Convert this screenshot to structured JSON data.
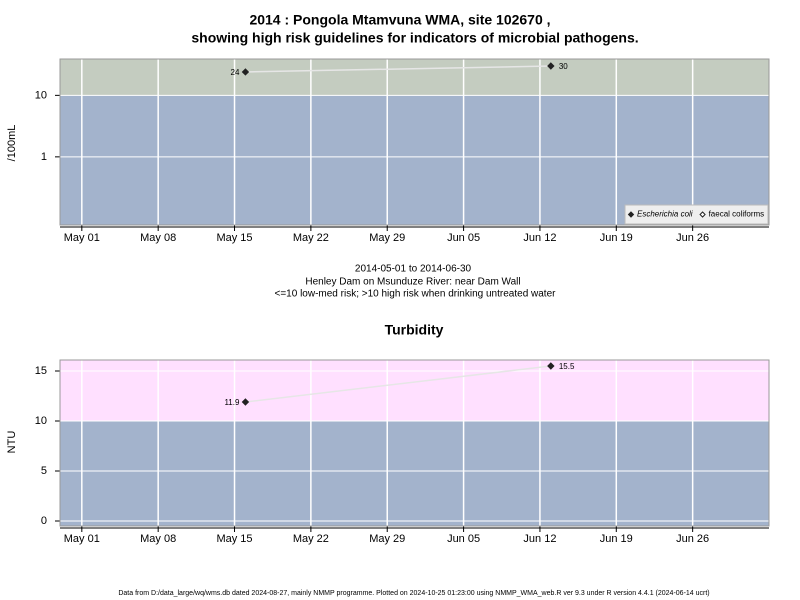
{
  "chart_data": [
    {
      "type": "line",
      "title": "2014 : Pongola Mtamvuna WMA, site 102670 ,",
      "subtitle": "showing high risk guidelines for indicators of microbial pathogens.",
      "ylabel": "/100mL",
      "log_y": true,
      "ylim": [
        0.078,
        39
      ],
      "yticks": [
        1,
        10
      ],
      "xlim": [
        "04-29",
        "07-03"
      ],
      "xticks": [
        {
          "value": "05-01",
          "label": "May 01"
        },
        {
          "value": "05-08",
          "label": "May 08"
        },
        {
          "value": "05-15",
          "label": "May 15"
        },
        {
          "value": "05-22",
          "label": "May 22"
        },
        {
          "value": "05-29",
          "label": "May 29"
        },
        {
          "value": "06-05",
          "label": "Jun 05"
        },
        {
          "value": "06-12",
          "label": "Jun 12"
        },
        {
          "value": "06-19",
          "label": "Jun 19"
        },
        {
          "value": "06-26",
          "label": "Jun 26"
        }
      ],
      "x": [
        "05-16",
        "06-13"
      ],
      "series": [
        {
          "name": "Escherichia coli",
          "color": "#222222",
          "marker": "filled",
          "values": [
            24,
            30
          ]
        },
        {
          "name": "faecal coliforms",
          "color": "#222222",
          "marker": "open",
          "values": [
            null,
            null
          ]
        }
      ],
      "risk_threshold": 10,
      "high_color": "#c4ccc0",
      "low_color": "#a3b3cc",
      "line_color": "#e6e6e6",
      "grid": true,
      "legend": "bottom-right",
      "notes": [
        "2014-05-01 to 2014-06-30",
        "Henley Dam on Msunduze River: near Dam Wall",
        "<=10 low-med risk; >10 high risk when drinking untreated water"
      ]
    },
    {
      "type": "line",
      "title": "Turbidity",
      "ylabel": "NTU",
      "log_y": false,
      "ylim": [
        -0.5,
        16.1
      ],
      "yticks": [
        0,
        5,
        10,
        15
      ],
      "xlim": [
        "04-29",
        "07-03"
      ],
      "xticks": [
        {
          "value": "05-01",
          "label": "May 01"
        },
        {
          "value": "05-08",
          "label": "May 08"
        },
        {
          "value": "05-15",
          "label": "May 15"
        },
        {
          "value": "05-22",
          "label": "May 22"
        },
        {
          "value": "05-29",
          "label": "May 29"
        },
        {
          "value": "06-05",
          "label": "Jun 05"
        },
        {
          "value": "06-12",
          "label": "Jun 12"
        },
        {
          "value": "06-19",
          "label": "Jun 19"
        },
        {
          "value": "06-26",
          "label": "Jun 26"
        }
      ],
      "x": [
        "05-16",
        "06-13"
      ],
      "series": [
        {
          "name": "Turbidity",
          "color": "#222222",
          "marker": "filled",
          "values": [
            11.9,
            15.5
          ]
        }
      ],
      "risk_threshold": 10,
      "high_color": "#ffe0ff",
      "low_color": "#a3b3cc",
      "line_color": "#e6e6e6",
      "grid": true
    }
  ],
  "footer": "Data from D:/data_large/wq/wms.db dated 2024-08-27, mainly NMMP programme. Plotted on 2024-10-25 01:23:00 using NMMP_WMA_web.R ver 9.3 under R version 4.4.1 (2024-06-14 ucrt)"
}
